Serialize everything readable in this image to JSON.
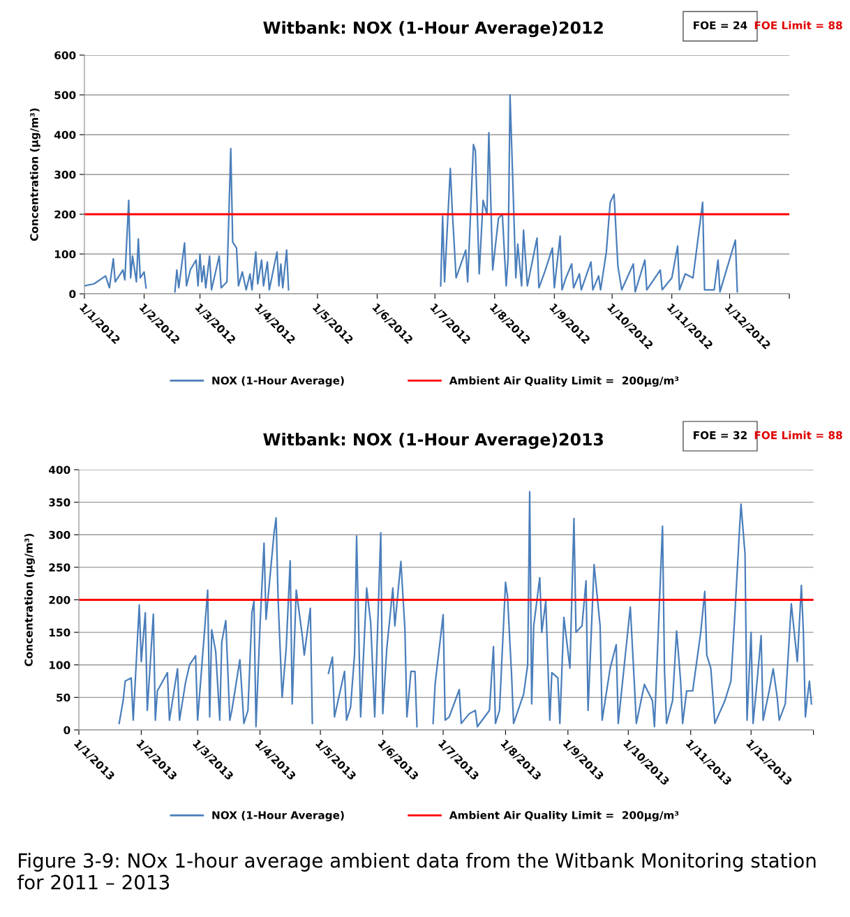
{
  "chart_data": [
    {
      "type": "line",
      "title": "Witbank: NOX (1-Hour Average)2012",
      "ylabel": "Concentration (µg/m³)",
      "x": [
        "2012-01-01",
        "2012-01-06",
        "2012-01-12",
        "2012-01-14",
        "2012-01-16",
        "2012-01-17",
        "2012-01-21",
        "2012-01-22",
        "2012-01-24",
        "2012-01-25",
        "2012-01-26",
        "2012-01-28",
        "2012-01-29",
        "2012-01-30",
        "2012-02-01",
        "2012-02-02",
        "2012-02-10",
        "2012-02-17",
        "2012-02-18",
        "2012-02-19",
        "2012-02-22",
        "2012-02-23",
        "2012-02-25",
        "2012-02-28",
        "2012-02-29",
        "2012-03-01",
        "2012-03-02",
        "2012-03-03",
        "2012-03-04",
        "2012-03-06",
        "2012-03-07",
        "2012-03-11",
        "2012-03-12",
        "2012-03-15",
        "2012-03-17",
        "2012-03-18",
        "2012-03-20",
        "2012-03-21",
        "2012-03-23",
        "2012-03-25",
        "2012-03-27",
        "2012-03-28",
        "2012-03-30",
        "2012-03-31",
        "2012-04-02",
        "2012-04-03",
        "2012-04-05",
        "2012-04-06",
        "2012-04-10",
        "2012-04-11",
        "2012-04-12",
        "2012-04-13",
        "2012-04-15",
        "2012-04-16",
        "2012-05-01",
        "2012-07-04",
        "2012-07-05",
        "2012-07-06",
        "2012-07-09",
        "2012-07-10",
        "2012-07-12",
        "2012-07-17",
        "2012-07-18",
        "2012-07-21",
        "2012-07-22",
        "2012-07-24",
        "2012-07-26",
        "2012-07-28",
        "2012-07-29",
        "2012-07-31",
        "2012-08-03",
        "2012-08-05",
        "2012-08-07",
        "2012-08-08",
        "2012-08-09",
        "2012-08-10",
        "2012-08-12",
        "2012-08-13",
        "2012-08-15",
        "2012-08-16",
        "2012-08-18",
        "2012-08-23",
        "2012-08-24",
        "2012-08-27",
        "2012-08-31",
        "2012-09-01",
        "2012-09-04",
        "2012-09-05",
        "2012-09-07",
        "2012-09-10",
        "2012-09-11",
        "2012-09-14",
        "2012-09-15",
        "2012-09-20",
        "2012-09-21",
        "2012-09-24",
        "2012-09-25",
        "2012-09-28",
        "2012-09-30",
        "2012-10-02",
        "2012-10-04",
        "2012-10-06",
        "2012-10-12",
        "2012-10-13",
        "2012-10-18",
        "2012-10-19",
        "2012-10-26",
        "2012-10-27",
        "2012-11-01",
        "2012-11-04",
        "2012-11-05",
        "2012-11-08",
        "2012-11-12",
        "2012-11-17",
        "2012-11-18",
        "2012-11-23",
        "2012-11-25",
        "2012-11-26",
        "2012-12-04",
        "2012-12-05"
      ],
      "series": [
        {
          "name": "NOX (1-Hour Average)",
          "color": "#4a7ebb",
          "values": [
            20,
            25,
            45,
            15,
            88,
            30,
            60,
            35,
            235,
            40,
            95,
            30,
            138,
            40,
            55,
            15,
            null,
            5,
            60,
            15,
            128,
            20,
            60,
            85,
            20,
            100,
            30,
            70,
            15,
            95,
            10,
            95,
            15,
            30,
            365,
            130,
            115,
            20,
            55,
            10,
            50,
            10,
            105,
            25,
            85,
            20,
            80,
            10,
            105,
            20,
            75,
            15,
            110,
            10,
            null,
            20,
            195,
            30,
            315,
            210,
            40,
            110,
            30,
            375,
            360,
            50,
            235,
            200,
            405,
            60,
            190,
            200,
            20,
            90,
            500,
            350,
            40,
            125,
            20,
            160,
            20,
            140,
            15,
            55,
            115,
            15,
            145,
            10,
            40,
            75,
            15,
            50,
            10,
            80,
            10,
            45,
            10,
            105,
            230,
            250,
            70,
            10,
            75,
            5,
            85,
            10,
            60,
            10,
            40,
            120,
            10,
            50,
            40,
            230,
            10,
            10,
            85,
            5,
            135,
            5
          ]
        }
      ],
      "ref_lines": [
        {
          "axis": "y",
          "value": 200,
          "label": "Ambient Air Quality Limit =  200µg/m³",
          "color": "#ff0000"
        }
      ],
      "xlim": [
        "2012-01-01",
        "2013-01-01"
      ],
      "xticks": [
        {
          "value": "2012-01-01",
          "label": "1/1/2012"
        },
        {
          "value": "2012-02-01",
          "label": "1/2/2012"
        },
        {
          "value": "2012-03-01",
          "label": "1/3/2012"
        },
        {
          "value": "2012-04-01",
          "label": "1/4/2012"
        },
        {
          "value": "2012-05-01",
          "label": "1/5/2012"
        },
        {
          "value": "2012-06-01",
          "label": "1/6/2012"
        },
        {
          "value": "2012-07-01",
          "label": "1/7/2012"
        },
        {
          "value": "2012-08-01",
          "label": "1/8/2012"
        },
        {
          "value": "2012-09-01",
          "label": "1/9/2012"
        },
        {
          "value": "2012-10-01",
          "label": "1/10/2012"
        },
        {
          "value": "2012-11-01",
          "label": "1/11/2012"
        },
        {
          "value": "2012-12-01",
          "label": "1/12/2012"
        },
        {
          "value": "2013-01-01",
          "label": null
        }
      ],
      "ylim": [
        0,
        600
      ],
      "yticks": [
        0,
        100,
        200,
        300,
        400,
        500,
        600
      ],
      "grid": "y",
      "legend": "bottom",
      "marker": "none",
      "line_style": "solid",
      "annotations": [
        "FOE = 24",
        "FOE Limit = 88"
      ]
    },
    {
      "type": "line",
      "title": "Witbank: NOX (1-Hour Average)2013",
      "ylabel": "Concentration (µg/m³)",
      "x": [
        "2013-01-21",
        "2013-01-23",
        "2013-01-24",
        "2013-01-27",
        "2013-01-28",
        "2013-01-31",
        "2013-02-01",
        "2013-02-03",
        "2013-02-04",
        "2013-02-07",
        "2013-02-08",
        "2013-02-09",
        "2013-02-14",
        "2013-02-15",
        "2013-02-19",
        "2013-02-20",
        "2013-02-23",
        "2013-02-25",
        "2013-02-28",
        "2013-03-01",
        "2013-03-04",
        "2013-03-06",
        "2013-03-07",
        "2013-03-08",
        "2013-03-10",
        "2013-03-12",
        "2013-03-13",
        "2013-03-15",
        "2013-03-17",
        "2013-03-18",
        "2013-03-22",
        "2013-03-24",
        "2013-03-26",
        "2013-03-28",
        "2013-03-29",
        "2013-03-30",
        "2013-04-01",
        "2013-04-03",
        "2013-04-04",
        "2013-04-08",
        "2013-04-09",
        "2013-04-10",
        "2013-04-12",
        "2013-04-14",
        "2013-04-16",
        "2013-04-17",
        "2013-04-19",
        "2013-04-22",
        "2013-04-23",
        "2013-04-26",
        "2013-04-27",
        "2013-05-01",
        "2013-05-05",
        "2013-05-07",
        "2013-05-08",
        "2013-05-13",
        "2013-05-14",
        "2013-05-16",
        "2013-05-18",
        "2013-05-19",
        "2013-05-21",
        "2013-05-24",
        "2013-05-26",
        "2013-05-28",
        "2013-05-31",
        "2013-06-01",
        "2013-06-03",
        "2013-06-06",
        "2013-06-07",
        "2013-06-10",
        "2013-06-12",
        "2013-06-13",
        "2013-06-15",
        "2013-06-17",
        "2013-06-18",
        "2013-06-22",
        "2013-06-26",
        "2013-06-27",
        "2013-07-01",
        "2013-07-02",
        "2013-07-04",
        "2013-07-07",
        "2013-07-09",
        "2013-07-10",
        "2013-07-14",
        "2013-07-17",
        "2013-07-18",
        "2013-07-24",
        "2013-07-26",
        "2013-07-27",
        "2013-07-29",
        "2013-08-01",
        "2013-08-02",
        "2013-08-04",
        "2013-08-05",
        "2013-08-10",
        "2013-08-12",
        "2013-08-13",
        "2013-08-14",
        "2013-08-15",
        "2013-08-18",
        "2013-08-19",
        "2013-08-21",
        "2013-08-23",
        "2013-08-24",
        "2013-08-27",
        "2013-08-28",
        "2013-08-30",
        "2013-09-02",
        "2013-09-04",
        "2013-09-05",
        "2013-09-08",
        "2013-09-10",
        "2013-09-11",
        "2013-09-14",
        "2013-09-17",
        "2013-09-18",
        "2013-09-22",
        "2013-09-25",
        "2013-09-26",
        "2013-10-02",
        "2013-10-04",
        "2013-10-05",
        "2013-10-09",
        "2013-10-13",
        "2013-10-14",
        "2013-10-18",
        "2013-10-19",
        "2013-10-20",
        "2013-10-23",
        "2013-10-25",
        "2013-10-27",
        "2013-10-28",
        "2013-10-30",
        "2013-11-02",
        "2013-11-06",
        "2013-11-08",
        "2013-11-09",
        "2013-11-11",
        "2013-11-13",
        "2013-11-18",
        "2013-11-21",
        "2013-11-23",
        "2013-11-25",
        "2013-11-26",
        "2013-11-28",
        "2013-11-29",
        "2013-12-01",
        "2013-12-02",
        "2013-12-04",
        "2013-12-06",
        "2013-12-07",
        "2013-12-10",
        "2013-12-12",
        "2013-12-14",
        "2013-12-15",
        "2013-12-18",
        "2013-12-21",
        "2013-12-24",
        "2013-12-26",
        "2013-12-27",
        "2013-12-28",
        "2013-12-29",
        "2013-12-30",
        "2013-12-31"
      ],
      "series": [
        {
          "name": "NOX (1-Hour Average)",
          "color": "#4a7ebb",
          "values": [
            10,
            45,
            75,
            80,
            15,
            192,
            105,
            180,
            30,
            178,
            15,
            60,
            88,
            15,
            94,
            15,
            73,
            100,
            114,
            15,
            135,
            215,
            20,
            154,
            120,
            15,
            135,
            168,
            15,
            30,
            108,
            10,
            30,
            181,
            198,
            5,
            160,
            287,
            170,
            303,
            326,
            200,
            50,
            125,
            260,
            40,
            215,
            145,
            115,
            187,
            10,
            null,
            87,
            112,
            20,
            90,
            15,
            35,
            117,
            298,
            20,
            218,
            165,
            20,
            303,
            25,
            125,
            218,
            160,
            259,
            155,
            20,
            90,
            90,
            5,
            null,
            10,
            70,
            177,
            15,
            20,
            45,
            62,
            10,
            25,
            30,
            5,
            30,
            128,
            10,
            30,
            227,
            205,
            85,
            10,
            55,
            100,
            366,
            40,
            160,
            234,
            150,
            198,
            15,
            88,
            80,
            10,
            173,
            95,
            325,
            150,
            160,
            229,
            30,
            254,
            160,
            15,
            95,
            131,
            10,
            189,
            72,
            10,
            70,
            45,
            5,
            313,
            90,
            10,
            45,
            152,
            75,
            10,
            60,
            60,
            150,
            213,
            115,
            95,
            10,
            45,
            75,
            180,
            294,
            347,
            270,
            15,
            150,
            10,
            75,
            145,
            15,
            60,
            94,
            50,
            15,
            40,
            194,
            105,
            222,
            150,
            20,
            50,
            75,
            40
          ]
        }
      ],
      "ref_lines": [
        {
          "axis": "y",
          "value": 200,
          "label": "Ambient Air Quality Limit =  200µg/m³",
          "color": "#ff0000"
        }
      ],
      "xlim": [
        "2013-01-01",
        "2014-01-01"
      ],
      "xticks": [
        {
          "value": "2013-01-01",
          "label": "1/1/2013"
        },
        {
          "value": "2013-02-01",
          "label": "1/2/2013"
        },
        {
          "value": "2013-03-01",
          "label": "1/3/2013"
        },
        {
          "value": "2013-04-01",
          "label": "1/4/2013"
        },
        {
          "value": "2013-05-01",
          "label": "1/5/2013"
        },
        {
          "value": "2013-06-01",
          "label": "1/6/2013"
        },
        {
          "value": "2013-07-01",
          "label": "1/7/2013"
        },
        {
          "value": "2013-08-01",
          "label": "1/8/2013"
        },
        {
          "value": "2013-09-01",
          "label": "1/9/2013"
        },
        {
          "value": "2013-10-01",
          "label": "1/10/2013"
        },
        {
          "value": "2013-11-01",
          "label": "1/11/2013"
        },
        {
          "value": "2013-12-01",
          "label": "1/12/2013"
        },
        {
          "value": "2014-01-01",
          "label": null
        }
      ],
      "ylim": [
        0,
        400
      ],
      "yticks": [
        0,
        50,
        100,
        150,
        200,
        250,
        300,
        350,
        400
      ],
      "grid": "y",
      "legend": "bottom",
      "marker": "none",
      "line_style": "solid",
      "annotations": [
        "FOE = 32",
        "FOE Limit = 88",
        "Figure 3-9: NOx 1-hour average ambient data from the Witbank Monitoring station for 2011 – 2013"
      ]
    }
  ]
}
